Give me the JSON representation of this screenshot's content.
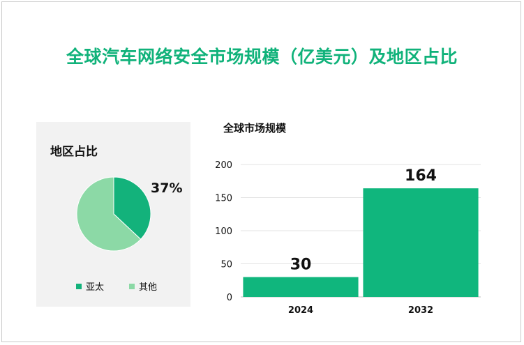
{
  "title": "全球汽车网络安全市场规模（亿美元）及地区占比",
  "colors": {
    "accent": "#10b27a",
    "pie_asia": "#13b27b",
    "pie_other": "#8cd9a6",
    "bar": "#10b67d"
  },
  "chart_data": [
    {
      "type": "pie",
      "title": "地区占比",
      "slices": [
        {
          "name": "亚太",
          "value": 37,
          "label": "37%"
        },
        {
          "name": "其他",
          "value": 63
        }
      ]
    },
    {
      "type": "bar",
      "title": "全球市场规模",
      "categories": [
        "2024",
        "2032"
      ],
      "values": [
        30,
        164
      ],
      "ylim": [
        0,
        200
      ],
      "yticks": [
        "0",
        "50",
        "100",
        "150",
        "200"
      ],
      "grid": true
    }
  ]
}
